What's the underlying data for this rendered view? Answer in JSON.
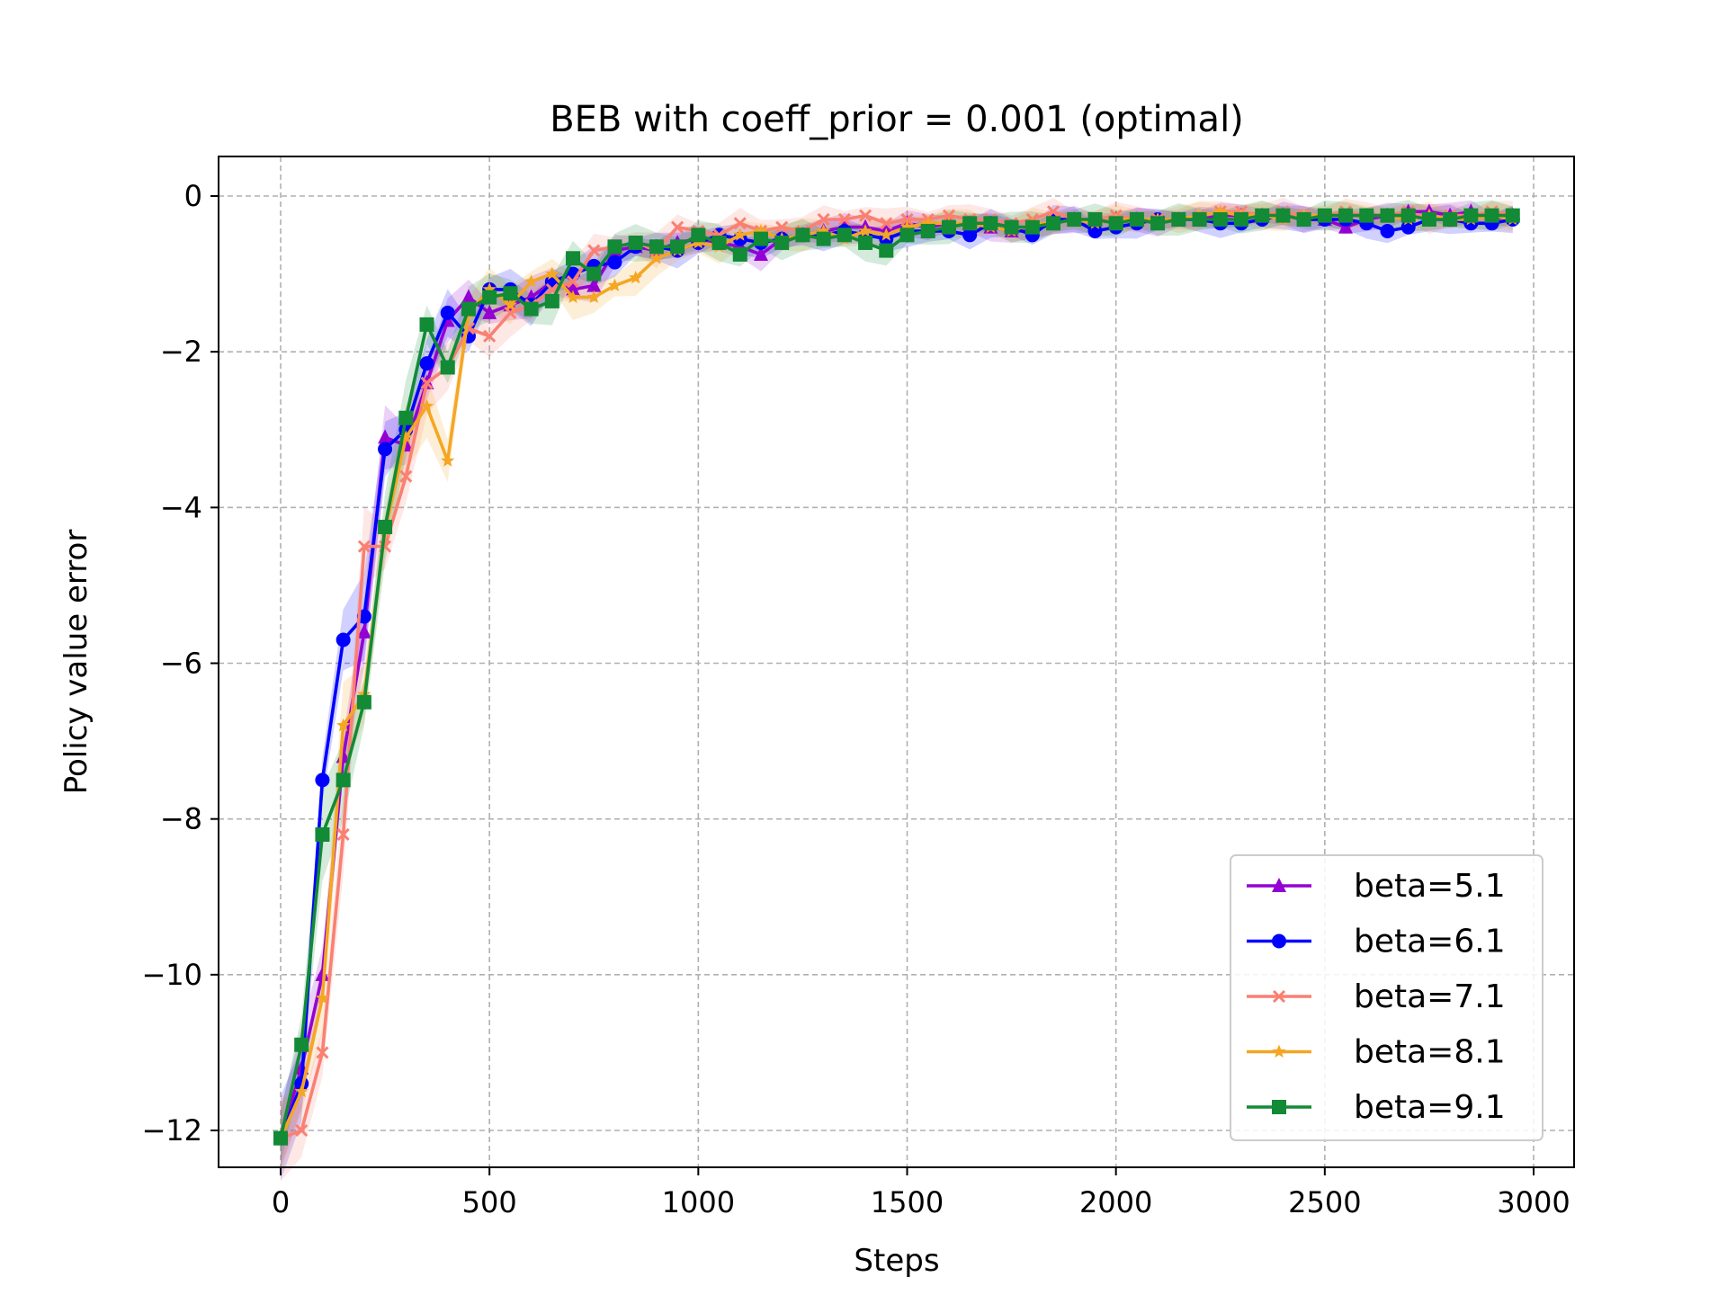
{
  "chart_data": {
    "type": "line",
    "title": "BEB with coeff_prior = 0.001 (optimal)",
    "xlabel": "Steps",
    "ylabel": "Policy value error",
    "xlim": [
      -150,
      3100
    ],
    "ylim": [
      -12.5,
      0.5
    ],
    "xticks": [
      0,
      500,
      1000,
      1500,
      2000,
      2500,
      3000
    ],
    "yticks": [
      0,
      -2,
      -4,
      -6,
      -8,
      -10,
      -12
    ],
    "xtick_labels": [
      "0",
      "500",
      "1000",
      "1500",
      "2000",
      "2500",
      "3000"
    ],
    "ytick_labels": [
      "0",
      "−2",
      "−4",
      "−6",
      "−8",
      "−10",
      "−12"
    ],
    "grid": true,
    "legend_position": "lower-right",
    "x": [
      0,
      50,
      100,
      150,
      200,
      250,
      300,
      350,
      400,
      450,
      500,
      550,
      600,
      650,
      700,
      750,
      800,
      850,
      900,
      950,
      1000,
      1050,
      1100,
      1150,
      1200,
      1250,
      1300,
      1350,
      1400,
      1450,
      1500,
      1550,
      1600,
      1650,
      1700,
      1750,
      1800,
      1850,
      1900,
      1950,
      2000,
      2050,
      2100,
      2150,
      2200,
      2250,
      2300,
      2350,
      2400,
      2450,
      2500,
      2550,
      2600,
      2650,
      2700,
      2750,
      2800,
      2850,
      2900,
      2950
    ],
    "series": [
      {
        "name": "beta=5.1",
        "color": "#9400d3",
        "marker": "triangle",
        "band_width": 0.55,
        "values": [
          -12.1,
          -11.2,
          -10.0,
          -7.2,
          -5.6,
          -3.1,
          -3.2,
          -2.4,
          -1.6,
          -1.3,
          -1.5,
          -1.4,
          -1.3,
          -1.1,
          -1.2,
          -1.15,
          -0.7,
          -0.65,
          -0.7,
          -0.6,
          -0.55,
          -0.6,
          -0.65,
          -0.75,
          -0.55,
          -0.5,
          -0.45,
          -0.4,
          -0.4,
          -0.45,
          -0.35,
          -0.4,
          -0.35,
          -0.35,
          -0.4,
          -0.45,
          -0.45,
          -0.35,
          -0.3,
          -0.35,
          -0.3,
          -0.3,
          -0.35,
          -0.3,
          -0.3,
          -0.25,
          -0.25,
          -0.25,
          -0.25,
          -0.3,
          -0.3,
          -0.4,
          -0.3,
          -0.25,
          -0.2,
          -0.2,
          -0.25,
          -0.2,
          -0.3,
          -0.25
        ]
      },
      {
        "name": "beta=6.1",
        "color": "#0000ff",
        "marker": "circle",
        "band_width": 0.6,
        "values": [
          -12.1,
          -11.4,
          -7.5,
          -5.7,
          -5.4,
          -3.25,
          -3.0,
          -2.15,
          -1.5,
          -1.8,
          -1.2,
          -1.2,
          -1.4,
          -1.1,
          -1.0,
          -0.9,
          -0.85,
          -0.65,
          -0.65,
          -0.7,
          -0.6,
          -0.5,
          -0.55,
          -0.6,
          -0.55,
          -0.5,
          -0.5,
          -0.45,
          -0.5,
          -0.55,
          -0.45,
          -0.45,
          -0.45,
          -0.5,
          -0.35,
          -0.4,
          -0.5,
          -0.3,
          -0.3,
          -0.45,
          -0.4,
          -0.35,
          -0.3,
          -0.3,
          -0.3,
          -0.35,
          -0.35,
          -0.3,
          -0.25,
          -0.3,
          -0.3,
          -0.3,
          -0.35,
          -0.45,
          -0.4,
          -0.3,
          -0.3,
          -0.35,
          -0.35,
          -0.3
        ]
      },
      {
        "name": "beta=7.1",
        "color": "#fa8072",
        "marker": "x",
        "band_width": 0.6,
        "values": [
          -12.1,
          -12.0,
          -11.0,
          -8.2,
          -4.5,
          -4.5,
          -3.6,
          -2.4,
          -2.2,
          -1.7,
          -1.8,
          -1.5,
          -1.4,
          -1.2,
          -1.1,
          -0.7,
          -0.65,
          -0.6,
          -0.7,
          -0.4,
          -0.45,
          -0.5,
          -0.35,
          -0.45,
          -0.4,
          -0.45,
          -0.3,
          -0.3,
          -0.25,
          -0.35,
          -0.3,
          -0.3,
          -0.25,
          -0.3,
          -0.3,
          -0.35,
          -0.3,
          -0.2,
          -0.3,
          -0.3,
          -0.25,
          -0.3,
          -0.3,
          -0.3,
          -0.25,
          -0.2,
          -0.2,
          -0.25,
          -0.2,
          -0.25,
          -0.25,
          -0.2,
          -0.25,
          -0.25,
          -0.2,
          -0.3,
          -0.25,
          -0.25,
          -0.2,
          -0.25
        ]
      },
      {
        "name": "beta=8.1",
        "color": "#f5a623",
        "marker": "star",
        "band_width": 0.6,
        "values": [
          -12.1,
          -11.5,
          -10.3,
          -6.8,
          -6.4,
          -4.3,
          -3.1,
          -2.7,
          -3.4,
          -1.5,
          -1.2,
          -1.4,
          -1.1,
          -1.0,
          -1.3,
          -1.3,
          -1.15,
          -1.05,
          -0.8,
          -0.7,
          -0.6,
          -0.65,
          -0.5,
          -0.45,
          -0.55,
          -0.5,
          -0.45,
          -0.55,
          -0.45,
          -0.5,
          -0.4,
          -0.35,
          -0.35,
          -0.35,
          -0.4,
          -0.45,
          -0.35,
          -0.35,
          -0.3,
          -0.35,
          -0.3,
          -0.3,
          -0.3,
          -0.3,
          -0.25,
          -0.2,
          -0.25,
          -0.25,
          -0.3,
          -0.25,
          -0.25,
          -0.25,
          -0.25,
          -0.25,
          -0.3,
          -0.25,
          -0.3,
          -0.3,
          -0.25,
          -0.3
        ]
      },
      {
        "name": "beta=9.1",
        "color": "#128a36",
        "marker": "square",
        "band_width": 0.65,
        "values": [
          -12.1,
          -10.9,
          -8.2,
          -7.5,
          -6.5,
          -4.25,
          -2.85,
          -1.65,
          -2.2,
          -1.45,
          -1.3,
          -1.25,
          -1.45,
          -1.35,
          -0.8,
          -1.0,
          -0.65,
          -0.6,
          -0.65,
          -0.65,
          -0.5,
          -0.6,
          -0.75,
          -0.55,
          -0.6,
          -0.5,
          -0.55,
          -0.5,
          -0.6,
          -0.7,
          -0.5,
          -0.45,
          -0.4,
          -0.35,
          -0.35,
          -0.4,
          -0.4,
          -0.35,
          -0.3,
          -0.3,
          -0.35,
          -0.3,
          -0.35,
          -0.3,
          -0.3,
          -0.3,
          -0.3,
          -0.25,
          -0.25,
          -0.3,
          -0.25,
          -0.25,
          -0.25,
          -0.25,
          -0.25,
          -0.3,
          -0.3,
          -0.25,
          -0.25,
          -0.25
        ]
      }
    ]
  }
}
